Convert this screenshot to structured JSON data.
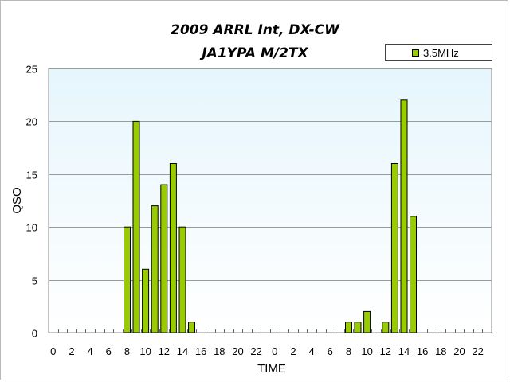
{
  "chart_data": {
    "type": "bar",
    "title": "2009 ARRL Int, DX-CW",
    "subtitle": "JA1YPA  M/2TX",
    "xlabel": "TIME",
    "ylabel": "QSO",
    "ylim": [
      0,
      25
    ],
    "yticks": [
      "0",
      "5",
      "10",
      "15",
      "20",
      "25"
    ],
    "grid": true,
    "legend_position": "top-right",
    "categories": [
      "0",
      "1",
      "2",
      "3",
      "4",
      "5",
      "6",
      "7",
      "8",
      "9",
      "10",
      "11",
      "12",
      "13",
      "14",
      "15",
      "16",
      "17",
      "18",
      "19",
      "20",
      "21",
      "22",
      "23",
      "0",
      "1",
      "2",
      "3",
      "4",
      "5",
      "6",
      "7",
      "8",
      "9",
      "10",
      "11",
      "12",
      "13",
      "14",
      "15",
      "16",
      "17",
      "18",
      "19",
      "20",
      "21",
      "22",
      "23"
    ],
    "tick_labels": [
      "0",
      "",
      "2",
      "",
      "4",
      "",
      "6",
      "",
      "8",
      "",
      "10",
      "",
      "12",
      "",
      "14",
      "",
      "16",
      "",
      "18",
      "",
      "20",
      "",
      "22",
      "",
      "0",
      "",
      "2",
      "",
      "4",
      "",
      "6",
      "",
      "8",
      "",
      "10",
      "",
      "12",
      "",
      "14",
      "",
      "16",
      "",
      "18",
      "",
      "20",
      "",
      "22",
      ""
    ],
    "series": [
      {
        "name": "3.5MHz",
        "color": "#99cc00",
        "values": [
          0,
          0,
          0,
          0,
          0,
          0,
          0,
          0,
          10,
          20,
          6,
          12,
          14,
          16,
          10,
          1,
          0,
          0,
          0,
          0,
          0,
          0,
          0,
          0,
          0,
          0,
          0,
          0,
          0,
          0,
          0,
          0,
          1,
          1,
          2,
          0,
          1,
          16,
          22,
          11,
          0,
          0,
          0,
          0,
          0,
          0,
          0,
          0
        ]
      }
    ],
    "plot_background": "#e6f6fd"
  }
}
